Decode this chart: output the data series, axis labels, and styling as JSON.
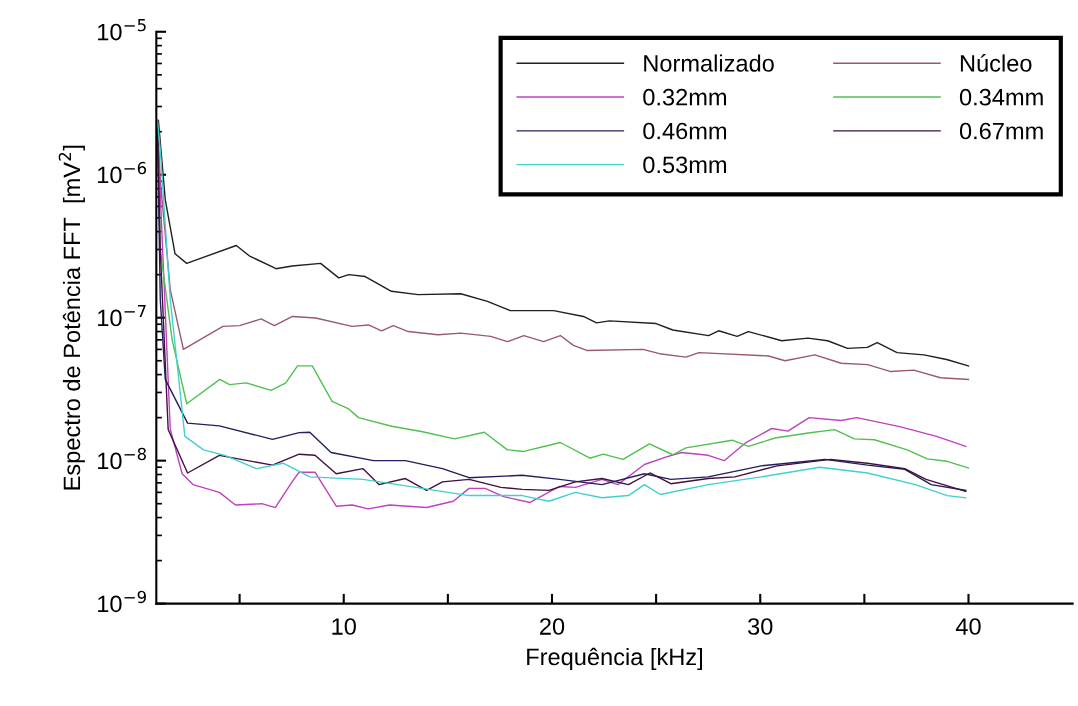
{
  "chart_data": {
    "type": "line",
    "xlabel": "Frequência [kHz]",
    "ylabel": "Espectro de Potência FFT  [mV$^{2}$]",
    "log": "y",
    "xlim": [
      1,
      45
    ],
    "ylim": [
      1e-09,
      1e-05
    ],
    "xticks": [
      {
        "value": 5,
        "label": null
      },
      10,
      {
        "value": 15,
        "label": null
      },
      20,
      {
        "value": 25,
        "label": null
      },
      30,
      {
        "value": 35,
        "label": null
      },
      40
    ],
    "yticks": [
      {
        "value": 1e-09,
        "label": "10$^{−9}$"
      },
      {
        "value": 1e-08,
        "label": "10$^{−8}$"
      },
      {
        "value": 1e-07,
        "label": "10$^{−7}$"
      },
      {
        "value": 1e-06,
        "label": "10$^{−6}$"
      },
      {
        "value": 1e-05,
        "label": "10$^{−5}$"
      }
    ],
    "grid": false,
    "legend": "top right",
    "marker": "none",
    "line_style": "solid",
    "series": [
      {
        "name": "Normalizado",
        "color": "#202020",
        "x": [
          1.1,
          1.43,
          1.9,
          2.46,
          4.84,
          5.48,
          6.75,
          7.52,
          8.89,
          9.76,
          10.24,
          11.03,
          12.29,
          13.57,
          15.62,
          16.9,
          18.0,
          20.08,
          21.51,
          22.14,
          22.76,
          25.0,
          25.8,
          27.52,
          28.0,
          28.89,
          29.43,
          31.03,
          32.29,
          33.24,
          34.19,
          35.14,
          35.62,
          36.57,
          37.86,
          38.95,
          40.0
        ],
        "values": [
          2.4e-06,
          6.7e-07,
          2.8e-07,
          2.4e-07,
          3.2e-07,
          2.7e-07,
          2.2e-07,
          2.3e-07,
          2.4e-07,
          1.9e-07,
          2e-07,
          1.94e-07,
          1.53e-07,
          1.45e-07,
          1.47e-07,
          1.3e-07,
          1.12e-07,
          1.12e-07,
          1.02e-07,
          9.2e-08,
          9.5e-08,
          9.1e-08,
          8.2e-08,
          7.5e-08,
          8.1e-08,
          7.4e-08,
          8e-08,
          6.9e-08,
          7.2e-08,
          6.9e-08,
          6.1e-08,
          6.2e-08,
          6.7e-08,
          5.7e-08,
          5.5e-08,
          5.1e-08,
          4.6e-08
        ]
      },
      {
        "name": "Núcleo",
        "color": "#9a5a6a",
        "x": [
          1.05,
          1.19,
          1.67,
          2.3,
          4.2,
          5.0,
          6.03,
          6.67,
          7.54,
          8.65,
          10.4,
          11.19,
          11.82,
          12.38,
          13.1,
          14.52,
          15.63,
          17.06,
          17.86,
          18.65,
          19.6,
          20.4,
          21.03,
          21.67,
          24.37,
          25.16,
          26.43,
          27.06,
          30.4,
          31.19,
          32.62,
          33.89,
          35.16,
          36.27,
          37.38,
          38.65,
          40.0
        ],
        "values": [
          2.4e-06,
          9.2e-07,
          1.57e-07,
          6e-08,
          8.7e-08,
          8.8e-08,
          9.8e-08,
          8.8e-08,
          1.02e-07,
          9.95e-08,
          8.7e-08,
          8.9e-08,
          8.1e-08,
          8.8e-08,
          8e-08,
          7.6e-08,
          7.8e-08,
          7.4e-08,
          6.8e-08,
          7.5e-08,
          6.8e-08,
          7.5e-08,
          6.4e-08,
          5.9e-08,
          6e-08,
          5.6e-08,
          5.3e-08,
          5.7e-08,
          5.4e-08,
          5e-08,
          5.5e-08,
          4.8e-08,
          4.7e-08,
          4.2e-08,
          4.3e-08,
          3.8e-08,
          3.7e-08
        ]
      },
      {
        "name": "0.32mm",
        "color": "#c040c0",
        "x": [
          1.1,
          1.67,
          2.24,
          2.76,
          4.03,
          4.8,
          6.07,
          6.71,
          7.6,
          7.86,
          8.62,
          9.64,
          10.41,
          11.17,
          12.2,
          13.98,
          15.26,
          16.02,
          16.79,
          17.68,
          18.95,
          20.36,
          21.12,
          22.4,
          23.16,
          24.44,
          25.46,
          26.22,
          27.5,
          28.27,
          29.29,
          30.56,
          31.33,
          32.35,
          33.88,
          34.64,
          36.69,
          38.47,
          39.87
        ],
        "values": [
          1.5e-06,
          1.66e-08,
          8.1e-09,
          6.8e-09,
          6e-09,
          4.9e-09,
          5e-09,
          4.7e-09,
          7.4e-09,
          8.3e-09,
          8.3e-09,
          4.8e-09,
          4.9e-09,
          4.6e-09,
          4.9e-09,
          4.7e-09,
          5.2e-09,
          6.4e-09,
          6.4e-09,
          5.6e-09,
          5.1e-09,
          6.6e-09,
          6.5e-09,
          7.4e-09,
          6.8e-09,
          9.4e-09,
          1.06e-08,
          1.14e-08,
          1.09e-08,
          1e-08,
          1.33e-08,
          1.68e-08,
          1.61e-08,
          2e-08,
          1.91e-08,
          2e-08,
          1.73e-08,
          1.48e-08,
          1.26e-08
        ]
      },
      {
        "name": "0.34mm",
        "color": "#50c050",
        "x": [
          1.05,
          1.19,
          1.76,
          2.46,
          4.05,
          4.52,
          5.32,
          6.51,
          7.22,
          7.78,
          8.49,
          9.44,
          10.24,
          10.71,
          12.3,
          13.73,
          15.32,
          16.75,
          17.86,
          18.65,
          20.4,
          21.82,
          22.46,
          23.41,
          24.68,
          25.8,
          26.43,
          28.65,
          29.44,
          30.71,
          32.3,
          33.57,
          34.52,
          35.48,
          37.06,
          38.02,
          38.97,
          40.0
        ],
        "values": [
          2.4e-06,
          3e-07,
          7e-08,
          2.5e-08,
          3.7e-08,
          3.4e-08,
          3.5e-08,
          3.1e-08,
          3.5e-08,
          4.6e-08,
          4.6e-08,
          2.6e-08,
          2.3e-08,
          2e-08,
          1.74e-08,
          1.6e-08,
          1.42e-08,
          1.58e-08,
          1.19e-08,
          1.16e-08,
          1.34e-08,
          1.04e-08,
          1.11e-08,
          1.02e-08,
          1.31e-08,
          1.1e-08,
          1.23e-08,
          1.39e-08,
          1.26e-08,
          1.44e-08,
          1.56e-08,
          1.65e-08,
          1.42e-08,
          1.4e-08,
          1.19e-08,
          1.03e-08,
          9.9e-09,
          8.9e-09
        ]
      },
      {
        "name": "0.46mm",
        "color": "#202060",
        "x": [
          1.05,
          1.19,
          1.43,
          2.5,
          4.03,
          6.58,
          7.86,
          8.37,
          9.39,
          11.43,
          12.96,
          14.74,
          16.02,
          18.57,
          20.36,
          22.4,
          24.44,
          25.71,
          27.5,
          30.05,
          33.11,
          35.15,
          36.94,
          38.21,
          39.87
        ],
        "values": [
          2.4e-06,
          1.34e-07,
          3.7e-08,
          1.83e-08,
          1.75e-08,
          1.41e-08,
          1.57e-08,
          1.58e-08,
          1.14e-08,
          1e-08,
          1e-08,
          8.8e-09,
          7.6e-09,
          7.9e-09,
          7.4e-09,
          6.8e-09,
          8.1e-09,
          7.4e-09,
          7.7e-09,
          9.2e-09,
          1.02e-08,
          9.3e-09,
          8.7e-09,
          6.8e-09,
          6.2e-09
        ]
      },
      {
        "name": "0.67mm",
        "color": "#401040",
        "x": [
          1.05,
          1.19,
          1.57,
          2.5,
          4.03,
          6.58,
          7.86,
          8.62,
          9.64,
          10.92,
          11.69,
          12.96,
          13.98,
          14.74,
          16.02,
          17.55,
          18.57,
          19.85,
          21.12,
          22.4,
          23.67,
          24.7,
          25.71,
          27.5,
          28.78,
          30.81,
          33.37,
          35.15,
          36.94,
          37.96,
          39.87
        ],
        "values": [
          2.4e-06,
          3e-07,
          1.65e-08,
          8.2e-09,
          1.09e-08,
          9.3e-09,
          1.11e-08,
          1.09e-08,
          8.1e-09,
          8.8e-09,
          6.8e-09,
          7.5e-09,
          6.2e-09,
          7.1e-09,
          7.4e-09,
          6.5e-09,
          6.3e-09,
          6.2e-09,
          7.1e-09,
          7.5e-09,
          6.8e-09,
          8.2e-09,
          6.9e-09,
          7.5e-09,
          7.7e-09,
          9.2e-09,
          1.02e-08,
          9.6e-09,
          8.8e-09,
          7.4e-09,
          6.1e-09
        ]
      },
      {
        "name": "0.53mm",
        "color": "#40d0d0",
        "x": [
          1.05,
          1.19,
          1.67,
          2.37,
          3.27,
          4.29,
          5.81,
          7.09,
          8.37,
          10.92,
          13.47,
          16.02,
          18.57,
          19.85,
          21.12,
          22.4,
          23.67,
          24.44,
          25.2,
          27.5,
          30.05,
          32.86,
          35.15,
          37.45,
          38.98,
          39.87
        ],
        "values": [
          2.4e-06,
          1.5e-06,
          1.34e-07,
          1.48e-08,
          1.19e-08,
          1.09e-08,
          8.8e-09,
          9.6e-09,
          7.7e-09,
          7.4e-09,
          6.5e-09,
          5.7e-09,
          5.7e-09,
          5.2e-09,
          6e-09,
          5.5e-09,
          5.7e-09,
          6.8e-09,
          5.8e-09,
          6.8e-09,
          7.7e-09,
          9e-09,
          8.2e-09,
          6.8e-09,
          5.7e-09,
          5.5e-09
        ]
      }
    ]
  }
}
